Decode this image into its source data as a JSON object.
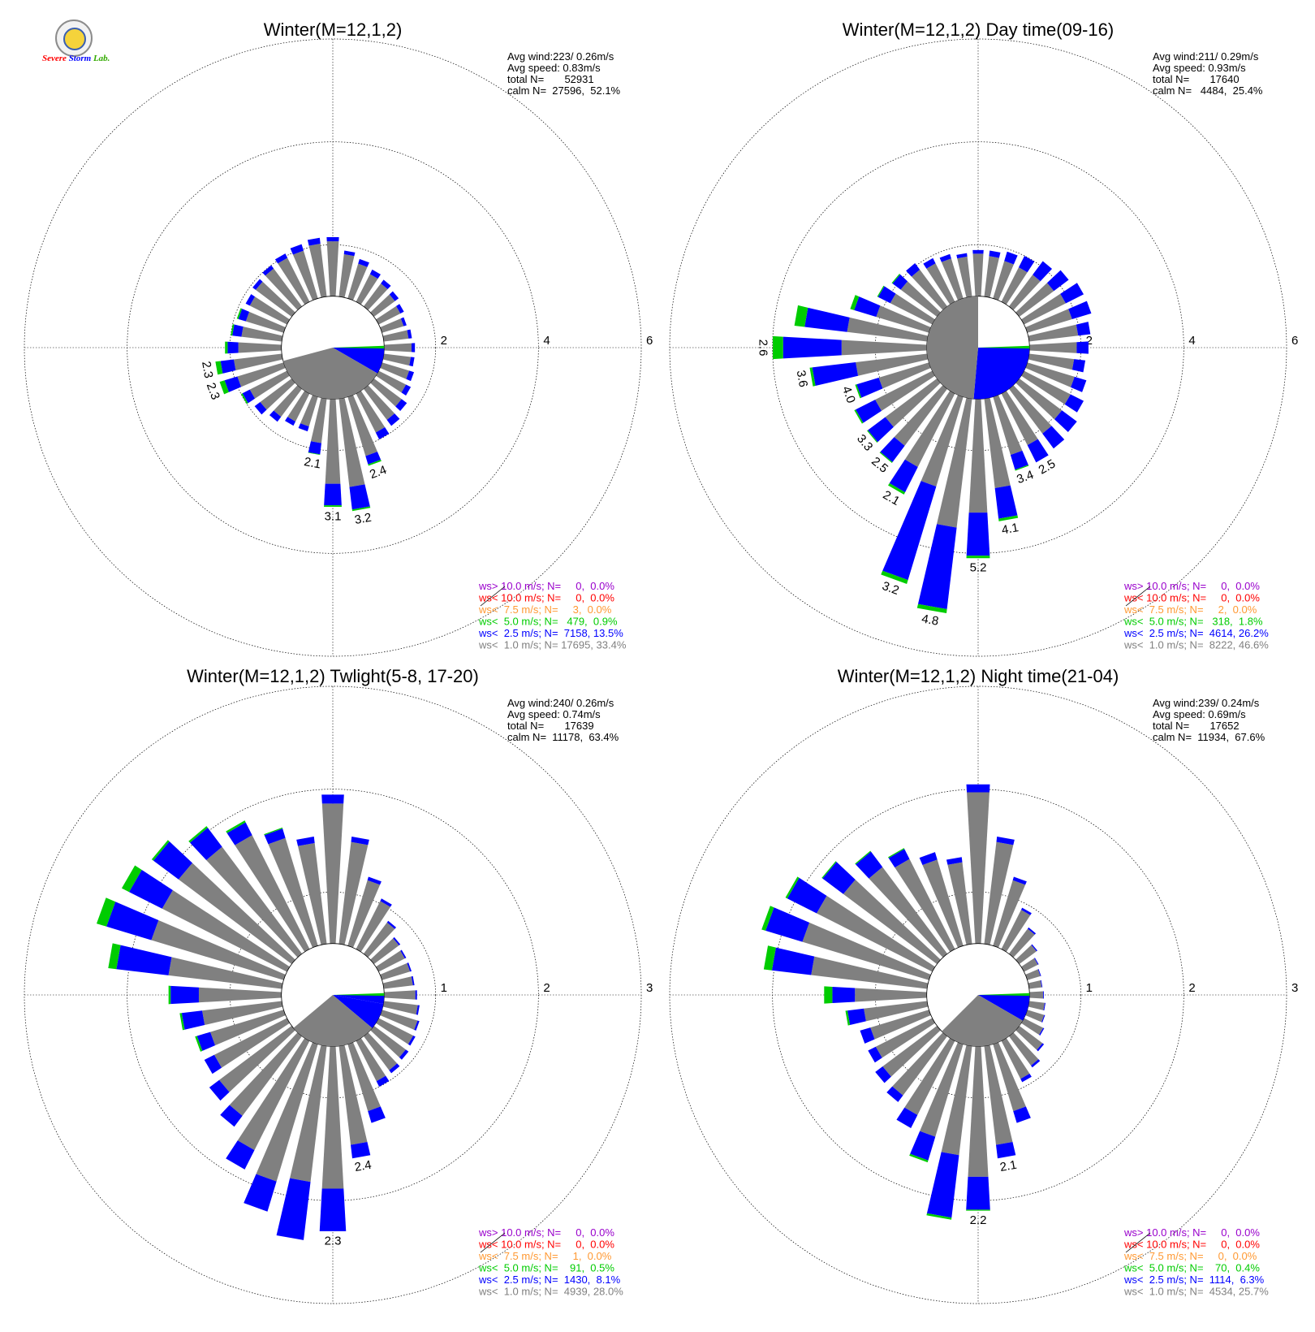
{
  "logo": {
    "text_a": "Severe",
    "text_b": "Storm",
    "text_c": "Lab."
  },
  "colors": {
    "ws_gt_10": "#9900cc",
    "ws_lt_10": "#ff0000",
    "ws_lt_7_5": "#ff9933",
    "ws_lt_5": "#00cc00",
    "ws_lt_2_5": "#0000ff",
    "ws_lt_1": "#808080",
    "text": "#000000"
  },
  "chart_data": [
    {
      "type": "wind-rose",
      "title": "Winter(M=12,1,2)",
      "stats": [
        "Avg wind:223/ 0.26m/s",
        "Avg speed: 0.83m/s",
        "total N=       52931",
        "calm N=  27596,  52.1%"
      ],
      "ring_ticks": [
        "2",
        "4",
        "6"
      ],
      "rmax": 6,
      "calm_radius": 1.0,
      "legend": [
        "ws> 10.0 m/s; N=     0,  0.0%",
        "ws< 10.0 m/s; N=     0,  0.0%",
        "ws<  7.5 m/s; N=     3,  0.0%",
        "ws<  5.0 m/s; N=   479,  0.9%",
        "ws<  2.5 m/s; N=  7158, 13.5%",
        "ws<  1.0 m/s; N= 17695, 33.4%"
      ],
      "directions_deg_step": 10,
      "totals": [
        2.15,
        1.9,
        1.8,
        1.7,
        1.65,
        1.6,
        1.55,
        1.5,
        1.55,
        1.6,
        1.6,
        1.65,
        1.7,
        1.8,
        1.9,
        2.0,
        2.4,
        3.2,
        3.1,
        2.1,
        1.7,
        1.7,
        1.8,
        1.9,
        2.0,
        2.3,
        2.3,
        2.1,
        2.0,
        1.95,
        1.9,
        1.95,
        2.0,
        2.05,
        2.1,
        2.15
      ],
      "blue_frac": [
        0.07,
        0.08,
        0.12,
        0.14,
        0.14,
        0.15,
        0.14,
        0.12,
        0.12,
        0.11,
        0.12,
        0.15,
        0.15,
        0.16,
        0.16,
        0.15,
        0.12,
        0.2,
        0.2,
        0.2,
        0.14,
        0.13,
        0.15,
        0.15,
        0.16,
        0.2,
        0.2,
        0.19,
        0.18,
        0.16,
        0.1,
        0.08,
        0.08,
        0.09,
        0.12,
        0.1
      ],
      "green": [
        0,
        0,
        0,
        0,
        0,
        0,
        0,
        0,
        0,
        0,
        0,
        0,
        0,
        0,
        0,
        0,
        0.03,
        0.03,
        0.03,
        0.01,
        0,
        0,
        0,
        0,
        0.03,
        0.1,
        0.1,
        0.05,
        0.03,
        0.03,
        0,
        0,
        0,
        0,
        0,
        0
      ],
      "bar_labels": [
        {
          "dir": 160,
          "text": "2.4"
        },
        {
          "dir": 170,
          "text": "3.2"
        },
        {
          "dir": 180,
          "text": "3.1"
        },
        {
          "dir": 190,
          "text": "2.1"
        },
        {
          "dir": 250,
          "text": "2.3"
        },
        {
          "dir": 260,
          "text": "2.3"
        }
      ],
      "calm_wedges": [
        {
          "from": 90,
          "to": 120,
          "color": "blue"
        },
        {
          "from": 120,
          "to": 255,
          "color": "gray"
        }
      ]
    },
    {
      "type": "wind-rose",
      "title": "Winter(M=12,1,2) Day time(09-16)",
      "stats": [
        "Avg wind:211/ 0.29m/s",
        "Avg speed: 0.93m/s",
        "total N=       17640",
        "calm N=   4484,  25.4%"
      ],
      "ring_ticks": [
        "2",
        "4",
        "6"
      ],
      "rmax": 6,
      "calm_radius": 1.0,
      "legend": [
        "ws> 10.0 m/s; N=     0,  0.0%",
        "ws< 10.0 m/s; N=     0,  0.0%",
        "ws<  7.5 m/s; N=     2,  0.0%",
        "ws<  5.0 m/s; N=   318,  1.8%",
        "ws<  2.5 m/s; N=  4614, 26.2%",
        "ws<  1.0 m/s; N=  8222, 46.6%"
      ],
      "directions_deg_step": 10,
      "totals": [
        1.9,
        1.9,
        1.95,
        2.0,
        2.1,
        2.2,
        2.3,
        2.3,
        2.2,
        2.15,
        2.1,
        2.2,
        2.3,
        2.4,
        2.45,
        2.5,
        2.5,
        3.4,
        4.1,
        5.2,
        4.8,
        3.2,
        2.8,
        2.7,
        2.7,
        2.5,
        3.3,
        4.0,
        3.6,
        2.6,
        2.2,
        2.1,
        2.05,
        1.95,
        1.9,
        1.85
      ],
      "blue_frac": [
        0.08,
        0.12,
        0.2,
        0.25,
        0.3,
        0.3,
        0.3,
        0.3,
        0.2,
        0.2,
        0.2,
        0.2,
        0.22,
        0.26,
        0.25,
        0.25,
        0.2,
        0.25,
        0.27,
        0.38,
        0.5,
        0.25,
        0.22,
        0.25,
        0.25,
        0.3,
        0.37,
        0.38,
        0.32,
        0.28,
        0.22,
        0.18,
        0.15,
        0.12,
        0.1,
        0.08
      ],
      "green": [
        0,
        0,
        0,
        0,
        0,
        0,
        0,
        0,
        0,
        0,
        0,
        0,
        0,
        0,
        0,
        0,
        0.02,
        0.05,
        0.05,
        0.08,
        0.08,
        0.05,
        0.02,
        0.02,
        0.03,
        0.03,
        0.05,
        0.2,
        0.2,
        0.08,
        0.02,
        0.02,
        0,
        0,
        0,
        0
      ],
      "bar_labels": [
        {
          "dir": 150,
          "text": "2.5"
        },
        {
          "dir": 160,
          "text": "3.4"
        },
        {
          "dir": 170,
          "text": "4.1"
        },
        {
          "dir": 180,
          "text": "5.2"
        },
        {
          "dir": 190,
          "text": "4.8"
        },
        {
          "dir": 200,
          "text": "3.2"
        },
        {
          "dir": 210,
          "text": "2.1"
        },
        {
          "dir": 220,
          "text": "2.5"
        },
        {
          "dir": 230,
          "text": "3.3"
        },
        {
          "dir": 250,
          "text": "4.0"
        },
        {
          "dir": 260,
          "text": "3.6"
        },
        {
          "dir": 270,
          "text": "2.6"
        }
      ],
      "calm_wedges": [
        {
          "from": 90,
          "to": 185,
          "color": "blue"
        },
        {
          "from": 185,
          "to": 360,
          "color": "gray"
        }
      ]
    },
    {
      "type": "wind-rose",
      "title": "Winter(M=12,1,2) Twlight(5-8, 17-20)",
      "stats": [
        "Avg wind:240/ 0.26m/s",
        "Avg speed: 0.74m/s",
        "total N=       17639",
        "calm N=  11178,  63.4%"
      ],
      "ring_ticks": [
        "1",
        "2",
        "3"
      ],
      "rmax": 3,
      "calm_radius": 0.5,
      "legend": [
        "ws> 10.0 m/s; N=     0,  0.0%",
        "ws< 10.0 m/s; N=     0,  0.0%",
        "ws<  7.5 m/s; N=     1,  0.0%",
        "ws<  5.0 m/s; N=    91,  0.5%",
        "ws<  2.5 m/s; N=  1430,  8.1%",
        "ws<  1.0 m/s; N=  4939, 28.0%"
      ],
      "directions_deg_step": 10,
      "totals": [
        1.95,
        1.55,
        1.2,
        1.05,
        0.9,
        0.82,
        0.8,
        0.8,
        0.8,
        0.82,
        0.85,
        0.88,
        0.9,
        0.92,
        0.95,
        1.0,
        1.3,
        1.6,
        2.3,
        2.4,
        2.2,
        1.9,
        1.6,
        1.5,
        1.4,
        1.4,
        1.5,
        1.6,
        2.2,
        2.4,
        2.3,
        2.2,
        2.05,
        1.9,
        1.7,
        1.55
      ],
      "blue_frac": [
        0.06,
        0.05,
        0.05,
        0.05,
        0.05,
        0.05,
        0.05,
        0.05,
        0.05,
        0.05,
        0.05,
        0.05,
        0.06,
        0.08,
        0.08,
        0.12,
        0.15,
        0.12,
        0.23,
        0.3,
        0.18,
        0.15,
        0.12,
        0.12,
        0.12,
        0.15,
        0.2,
        0.25,
        0.3,
        0.24,
        0.2,
        0.18,
        0.15,
        0.1,
        0.08,
        0.06
      ],
      "green": [
        0,
        0,
        0,
        0,
        0,
        0,
        0,
        0,
        0,
        0,
        0,
        0,
        0,
        0,
        0,
        0,
        0,
        0,
        0,
        0,
        0,
        0,
        0,
        0,
        0,
        0.02,
        0.02,
        0.02,
        0.08,
        0.1,
        0.08,
        0.02,
        0.02,
        0.02,
        0.01,
        0
      ],
      "bar_labels": [
        {
          "dir": 170,
          "text": "2.4"
        },
        {
          "dir": 180,
          "text": "2.3"
        }
      ],
      "calm_wedges": [
        {
          "from": 90,
          "to": 100,
          "color": "blue"
        },
        {
          "from": 100,
          "to": 130,
          "color": "blue"
        },
        {
          "from": 130,
          "to": 230,
          "color": "gray"
        }
      ]
    },
    {
      "type": "wind-rose",
      "title": "Winter(M=12,1,2) Night time(21-04)",
      "stats": [
        "Avg wind:239/ 0.24m/s",
        "Avg speed: 0.69m/s",
        "total N=       17652",
        "calm N=  11934,  67.6%"
      ],
      "ring_ticks": [
        "1",
        "2",
        "3"
      ],
      "rmax": 3,
      "calm_radius": 0.5,
      "legend": [
        "ws> 10.0 m/s; N=     0,  0.0%",
        "ws< 10.0 m/s; N=     0,  0.0%",
        "ws<  7.5 m/s; N=     0,  0.0%",
        "ws<  5.0 m/s; N=    70,  0.4%",
        "ws<  2.5 m/s; N=  1114,  6.3%",
        "ws<  1.0 m/s; N=  4534, 25.7%"
      ],
      "directions_deg_step": 10,
      "totals": [
        2.05,
        1.55,
        1.2,
        0.95,
        0.82,
        0.72,
        0.66,
        0.64,
        0.63,
        0.64,
        0.66,
        0.68,
        0.72,
        0.8,
        0.88,
        0.95,
        1.3,
        1.6,
        2.1,
        2.2,
        1.7,
        1.45,
        1.3,
        1.25,
        1.2,
        1.2,
        1.3,
        1.5,
        2.1,
        2.2,
        2.1,
        1.9,
        1.75,
        1.6,
        1.45,
        1.35
      ],
      "blue_frac": [
        0.05,
        0.05,
        0.05,
        0.05,
        0.05,
        0.05,
        0.05,
        0.05,
        0.05,
        0.05,
        0.05,
        0.05,
        0.05,
        0.06,
        0.06,
        0.08,
        0.15,
        0.12,
        0.2,
        0.36,
        0.2,
        0.15,
        0.1,
        0.12,
        0.12,
        0.15,
        0.2,
        0.22,
        0.24,
        0.22,
        0.2,
        0.18,
        0.15,
        0.1,
        0.08,
        0.06
      ],
      "green": [
        0,
        0,
        0,
        0,
        0,
        0,
        0,
        0,
        0,
        0,
        0,
        0,
        0,
        0,
        0,
        0,
        0,
        0,
        0.01,
        0.02,
        0.02,
        0,
        0,
        0,
        0,
        0,
        0.02,
        0.08,
        0.08,
        0.04,
        0.02,
        0.01,
        0.01,
        0.01,
        0,
        0
      ],
      "bar_labels": [
        {
          "dir": 170,
          "text": "2.1"
        },
        {
          "dir": 180,
          "text": "2.2"
        }
      ],
      "calm_wedges": [
        {
          "from": 90,
          "to": 120,
          "color": "blue"
        },
        {
          "from": 120,
          "to": 225,
          "color": "gray"
        }
      ]
    }
  ]
}
